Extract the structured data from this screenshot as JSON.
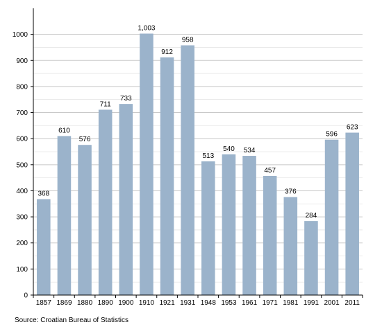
{
  "chart_data": {
    "type": "bar",
    "categories": [
      "1857",
      "1869",
      "1880",
      "1890",
      "1900",
      "1910",
      "1921",
      "1931",
      "1948",
      "1953",
      "1961",
      "1971",
      "1981",
      "1991",
      "2001",
      "2011"
    ],
    "values": [
      368,
      610,
      576,
      711,
      733,
      1003,
      912,
      958,
      513,
      540,
      534,
      457,
      376,
      284,
      596,
      623
    ],
    "data_labels": [
      "368",
      "610",
      "576",
      "711",
      "733",
      "1,003",
      "912",
      "958",
      "513",
      "540",
      "534",
      "457",
      "376",
      "284",
      "596",
      "623"
    ],
    "yticks": [
      "0",
      "100",
      "200",
      "300",
      "400",
      "500",
      "600",
      "700",
      "800",
      "900",
      "1000"
    ],
    "ylim": [
      0,
      1100
    ],
    "title": "",
    "xlabel": "",
    "ylabel": "",
    "grid": true,
    "bar_color": "#9bb3cb",
    "grid_color": "#c8c8c8"
  },
  "source": "Source: Croatian Bureau of Statistics"
}
